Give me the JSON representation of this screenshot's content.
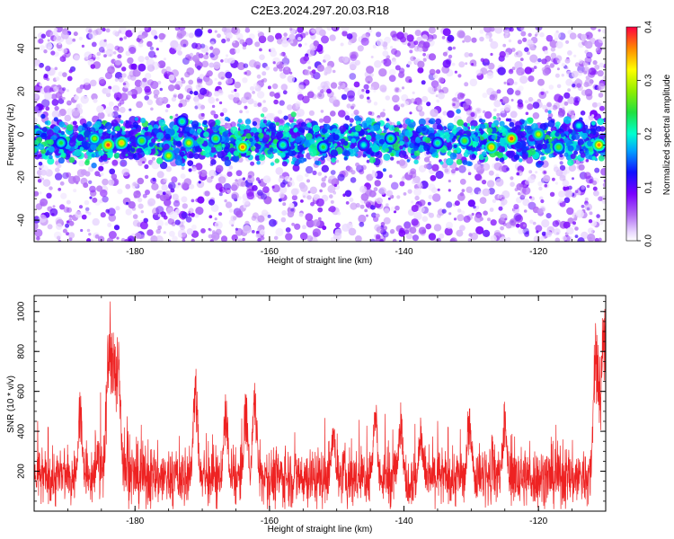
{
  "title": "C2E3.2024.297.20.03.R18",
  "chart_data": [
    {
      "type": "heatmap",
      "xlabel": "Height of straight line (km)",
      "ylabel": "Frequency (Hz)",
      "xlim": [
        -195,
        -110
      ],
      "ylim": [
        -50,
        50
      ],
      "x_ticks": [
        -180,
        -160,
        -140,
        -120
      ],
      "y_ticks": [
        -40,
        -20,
        0,
        20,
        40
      ],
      "description_band": {
        "center_hz": -3,
        "halfwidth_hz": 10
      },
      "bright_spots": [
        {
          "x": -191,
          "y": -4,
          "v": 0.24
        },
        {
          "x": -186,
          "y": -2,
          "v": 0.28
        },
        {
          "x": -184,
          "y": -5,
          "v": 0.38
        },
        {
          "x": -182,
          "y": -4,
          "v": 0.34
        },
        {
          "x": -179,
          "y": -3,
          "v": 0.26
        },
        {
          "x": -175,
          "y": -10,
          "v": 0.3
        },
        {
          "x": -173,
          "y": 6,
          "v": 0.22
        },
        {
          "x": -172,
          "y": -4,
          "v": 0.3
        },
        {
          "x": -168,
          "y": -2,
          "v": 0.26
        },
        {
          "x": -164,
          "y": -6,
          "v": 0.36
        },
        {
          "x": -158,
          "y": -5,
          "v": 0.22
        },
        {
          "x": -152,
          "y": -6,
          "v": 0.24
        },
        {
          "x": -146,
          "y": -5,
          "v": 0.2
        },
        {
          "x": -142,
          "y": -2,
          "v": 0.24
        },
        {
          "x": -135,
          "y": -4,
          "v": 0.22
        },
        {
          "x": -131,
          "y": -3,
          "v": 0.26
        },
        {
          "x": -127,
          "y": -6,
          "v": 0.34
        },
        {
          "x": -124,
          "y": -2,
          "v": 0.38
        },
        {
          "x": -120,
          "y": 0,
          "v": 0.3
        },
        {
          "x": -117,
          "y": -6,
          "v": 0.26
        },
        {
          "x": -114,
          "y": 4,
          "v": 0.2
        },
        {
          "x": -111,
          "y": -5,
          "v": 0.36
        }
      ],
      "colorbar": {
        "label": "Normalized spectral amplitude",
        "range": [
          0.0,
          0.4
        ],
        "ticks": [
          "0.0",
          "0.1",
          "0.2",
          "0.3",
          "0.4"
        ]
      }
    },
    {
      "type": "line",
      "xlabel": "Height of straight line (km)",
      "ylabel": "SNR (10 * v/v)",
      "xlim": [
        -195,
        -110
      ],
      "ylim": [
        0,
        1080
      ],
      "x_ticks": [
        -180,
        -160,
        -140,
        -120
      ],
      "y_ticks": [
        200,
        400,
        600,
        800,
        1000
      ],
      "color": "#ee2222",
      "baseline": 170,
      "peaks": [
        {
          "x": -183.8,
          "y": 980
        },
        {
          "x": -183.2,
          "y": 900
        },
        {
          "x": -182.5,
          "y": 800
        },
        {
          "x": -188.2,
          "y": 610
        },
        {
          "x": -171.0,
          "y": 730
        },
        {
          "x": -166.5,
          "y": 600
        },
        {
          "x": -163.5,
          "y": 610
        },
        {
          "x": -162.2,
          "y": 680
        },
        {
          "x": -150.5,
          "y": 460
        },
        {
          "x": -144.3,
          "y": 600
        },
        {
          "x": -140.5,
          "y": 570
        },
        {
          "x": -137.5,
          "y": 480
        },
        {
          "x": -130.2,
          "y": 560
        },
        {
          "x": -125.0,
          "y": 560
        },
        {
          "x": -111.5,
          "y": 820
        },
        {
          "x": -111.0,
          "y": 700
        },
        {
          "x": -110.3,
          "y": 1070
        }
      ]
    }
  ]
}
